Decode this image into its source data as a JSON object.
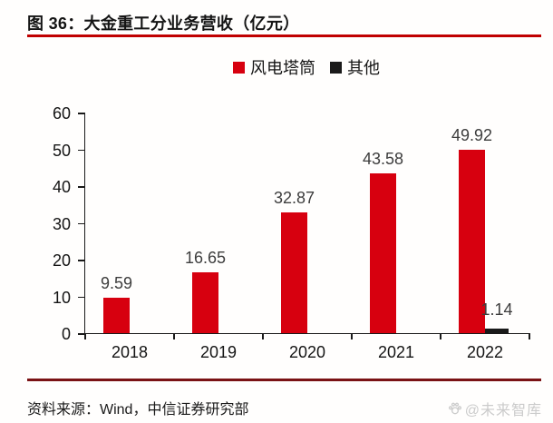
{
  "title": "图 36：大金重工分业务营收（亿元）",
  "source_line": "资料来源：Wind，中信证券研究部",
  "watermark_text": "@未来智库",
  "colors": {
    "bar_red": "#D7000F",
    "bar_dark": "#1A1A1A",
    "title_rule": "#C00000",
    "footer_rule": "#7A1215",
    "axis": "#1A1A1A",
    "value_label": "#3D3D3D",
    "watermark": "#CBCBCB"
  },
  "chart_data": {
    "type": "bar",
    "title": "大金重工分业务营收（亿元）",
    "categories": [
      "2018",
      "2019",
      "2020",
      "2021",
      "2022"
    ],
    "series": [
      {
        "name": "风电塔筒",
        "color": "bar_red",
        "values": [
          9.59,
          16.65,
          32.87,
          43.58,
          49.92
        ],
        "labels": [
          "9.59",
          "16.65",
          "32.87",
          "43.58",
          "49.92"
        ]
      },
      {
        "name": "其他",
        "color": "bar_dark",
        "values": [
          0,
          0,
          0,
          0,
          1.14
        ],
        "labels": [
          "",
          "",
          "",
          "",
          "1.14"
        ]
      }
    ],
    "ylim": [
      0,
      60
    ],
    "yticks": [
      0,
      10,
      20,
      30,
      40,
      50,
      60
    ],
    "grid": false,
    "legend_position": "top-center"
  }
}
